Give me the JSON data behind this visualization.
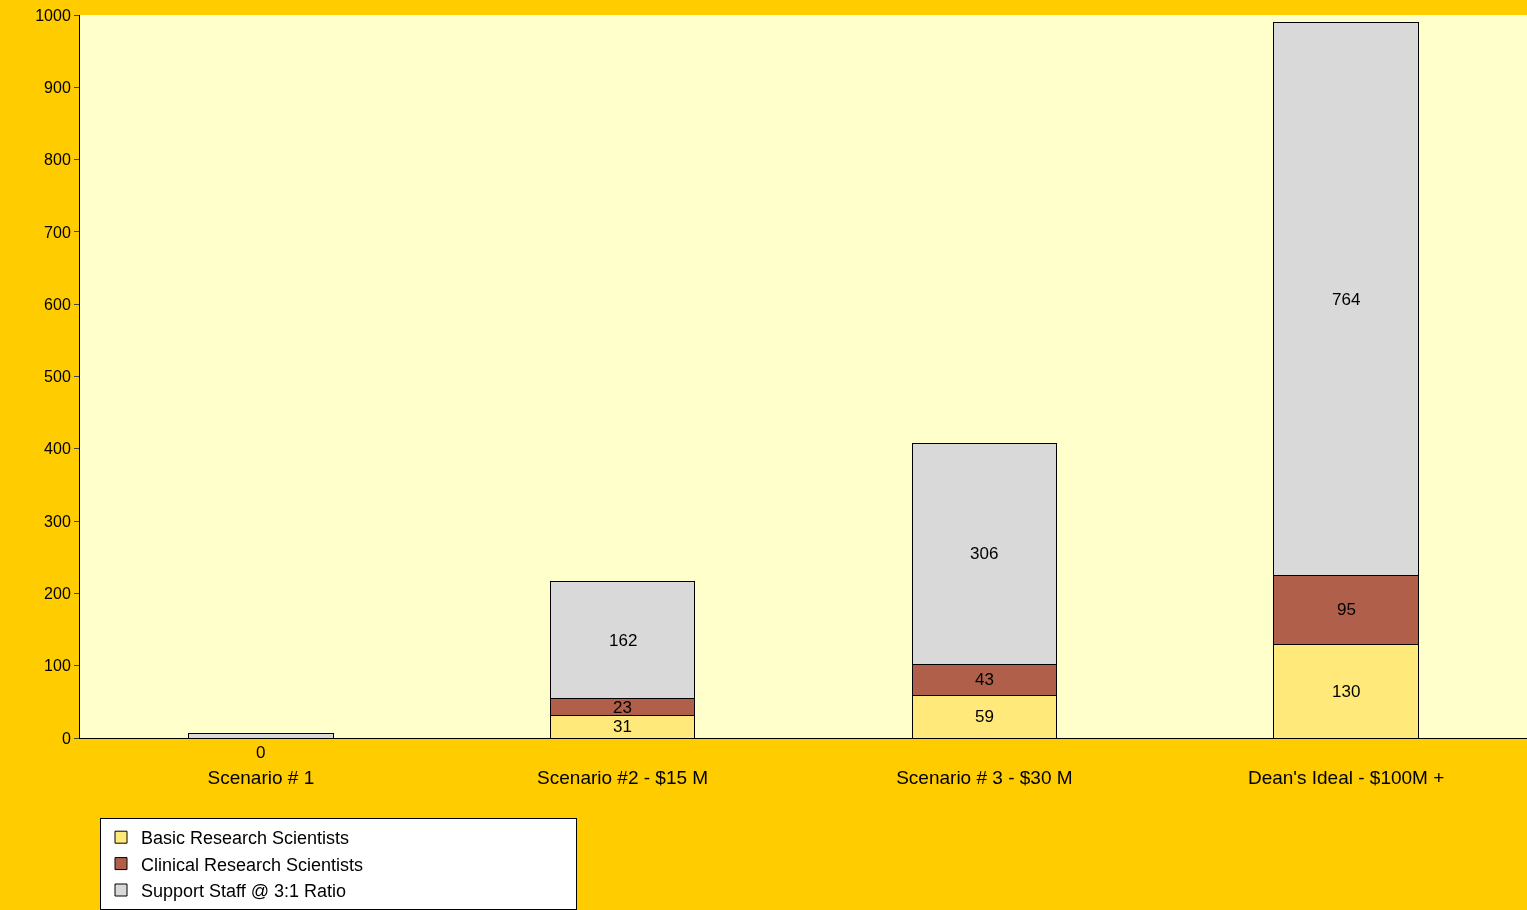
{
  "chart_data": {
    "type": "bar",
    "stacked": true,
    "categories": [
      "Scenario # 1",
      "Scenario #2 - $15 M",
      "Scenario # 3 - $30 M",
      "Dean's Ideal - $100M +"
    ],
    "series": [
      {
        "name": "Basic Research Scientists",
        "color": "#ffe97a",
        "values": [
          0,
          31,
          59,
          130
        ],
        "value_labels": [
          "0",
          "31",
          "59",
          "130"
        ]
      },
      {
        "name": "Clinical Research Scientists",
        "color": "#b0604a",
        "values": [
          0,
          23,
          43,
          95
        ],
        "value_labels": [
          null,
          "23",
          "43",
          "95"
        ]
      },
      {
        "name": "Support Staff @ 3:1 Ratio",
        "color": "#d9d9d9",
        "values": [
          6,
          162,
          306,
          764
        ],
        "value_labels": [
          null,
          "162",
          "306",
          "764"
        ]
      }
    ],
    "ylim": [
      0,
      1000
    ],
    "yticks": [
      0,
      100,
      200,
      300,
      400,
      500,
      600,
      700,
      800,
      900,
      1000
    ],
    "grid": false,
    "legend": "bottom"
  }
}
